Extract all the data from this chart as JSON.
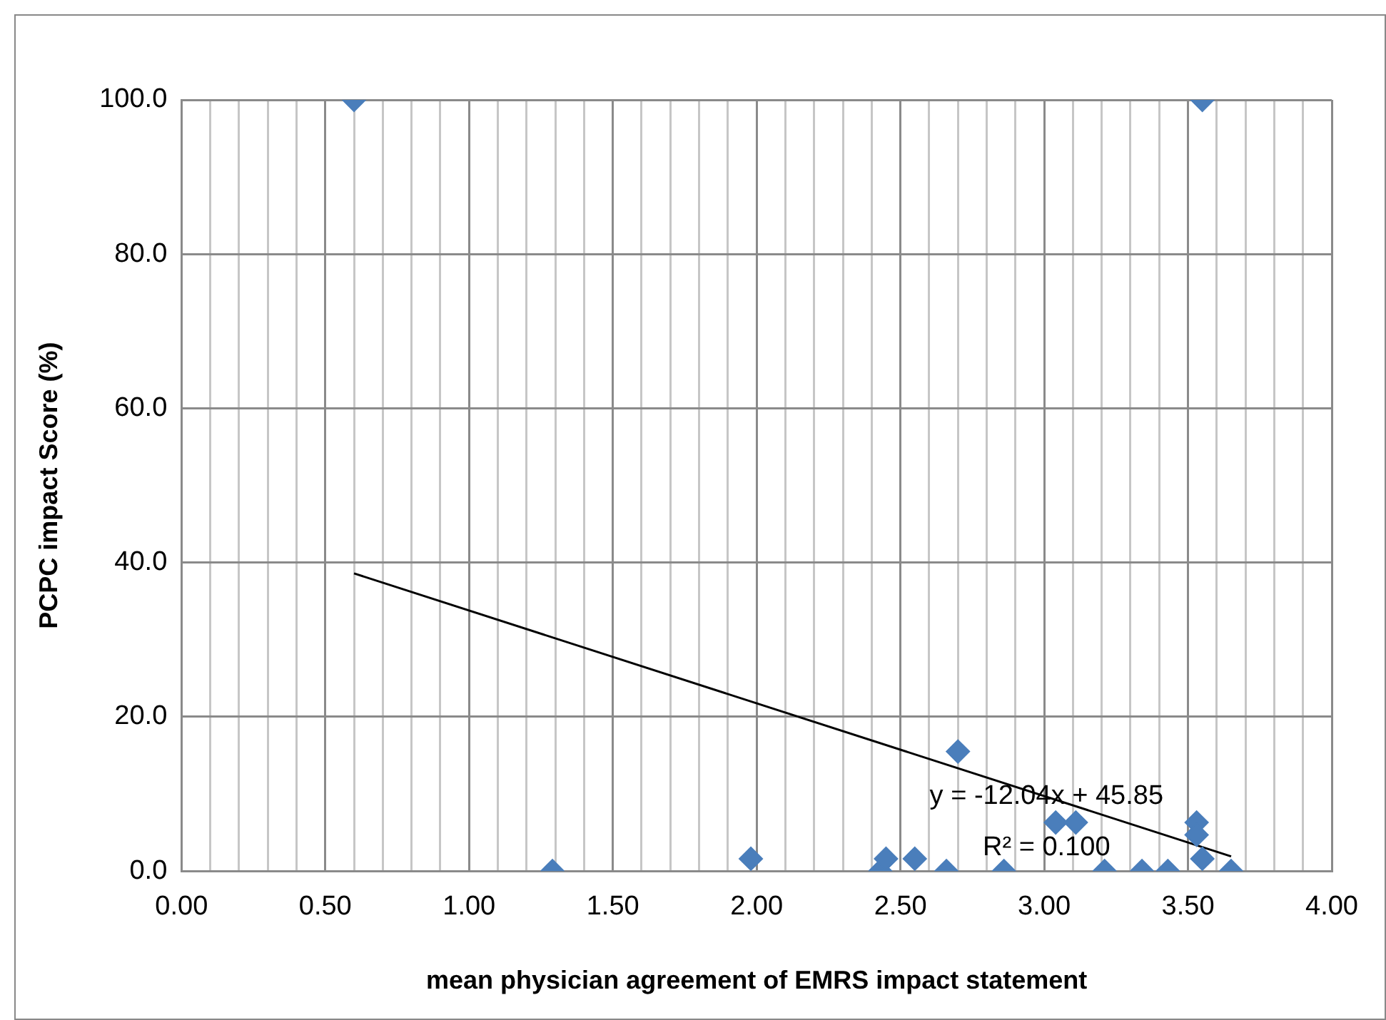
{
  "chart_data": {
    "type": "scatter",
    "xlabel": "mean physician agreement of EMRS impact statement",
    "ylabel": "PCPC impact Score (%)",
    "xlim": [
      0,
      4
    ],
    "ylim": [
      0,
      100
    ],
    "xticks": [
      {
        "value": 0,
        "label": "0.00"
      },
      {
        "value": 0.1,
        "label": null
      },
      {
        "value": 0.2,
        "label": null
      },
      {
        "value": 0.3,
        "label": null
      },
      {
        "value": 0.4,
        "label": null
      },
      {
        "value": 0.5,
        "label": "0.50"
      },
      {
        "value": 0.6,
        "label": null
      },
      {
        "value": 0.7,
        "label": null
      },
      {
        "value": 0.8,
        "label": null
      },
      {
        "value": 0.9,
        "label": null
      },
      {
        "value": 1,
        "label": "1.00"
      },
      {
        "value": 1.1,
        "label": null
      },
      {
        "value": 1.2,
        "label": null
      },
      {
        "value": 1.3,
        "label": null
      },
      {
        "value": 1.4,
        "label": null
      },
      {
        "value": 1.5,
        "label": "1.50"
      },
      {
        "value": 1.6,
        "label": null
      },
      {
        "value": 1.7,
        "label": null
      },
      {
        "value": 1.8,
        "label": null
      },
      {
        "value": 1.9,
        "label": null
      },
      {
        "value": 2,
        "label": "2.00"
      },
      {
        "value": 2.1,
        "label": null
      },
      {
        "value": 2.2,
        "label": null
      },
      {
        "value": 2.3,
        "label": null
      },
      {
        "value": 2.4,
        "label": null
      },
      {
        "value": 2.5,
        "label": "2.50"
      },
      {
        "value": 2.6,
        "label": null
      },
      {
        "value": 2.7,
        "label": null
      },
      {
        "value": 2.8,
        "label": null
      },
      {
        "value": 2.9,
        "label": null
      },
      {
        "value": 3,
        "label": "3.00"
      },
      {
        "value": 3.1,
        "label": null
      },
      {
        "value": 3.2,
        "label": null
      },
      {
        "value": 3.3,
        "label": null
      },
      {
        "value": 3.4,
        "label": null
      },
      {
        "value": 3.5,
        "label": "3.50"
      },
      {
        "value": 3.6,
        "label": null
      },
      {
        "value": 3.7,
        "label": null
      },
      {
        "value": 3.8,
        "label": null
      },
      {
        "value": 3.9,
        "label": null
      },
      {
        "value": 4,
        "label": "4.00"
      }
    ],
    "yticks": [
      {
        "value": 0,
        "label": "0.0"
      },
      {
        "value": 20,
        "label": "20.0"
      },
      {
        "value": 40,
        "label": "40.0"
      },
      {
        "value": 60,
        "label": "60.0"
      },
      {
        "value": 80,
        "label": "80.0"
      },
      {
        "value": 100,
        "label": "100.0"
      }
    ],
    "grid": true,
    "legend": false,
    "marker": "diamond",
    "series": [
      {
        "type": "scatter",
        "color": "#4a7ebb",
        "x": [
          0.6,
          3.55,
          1.29,
          1.98,
          2.43,
          2.45,
          2.55,
          2.66,
          2.7,
          2.86,
          3.04,
          3.11,
          3.21,
          3.34,
          3.43,
          3.53,
          3.53,
          3.55,
          3.65
        ],
        "values": [
          100,
          100,
          0,
          1.6,
          0,
          1.6,
          1.6,
          0,
          15.5,
          0,
          6.3,
          6.3,
          0,
          0,
          0,
          6.3,
          4.7,
          1.6,
          0
        ]
      },
      {
        "type": "line",
        "color": "#000000",
        "marker": "none",
        "x": [
          0.6,
          3.65
        ],
        "values": [
          38.6,
          1.9
        ]
      }
    ],
    "annotations": [
      "y = -12.04x + 45.85",
      "R² = 0.100"
    ]
  }
}
